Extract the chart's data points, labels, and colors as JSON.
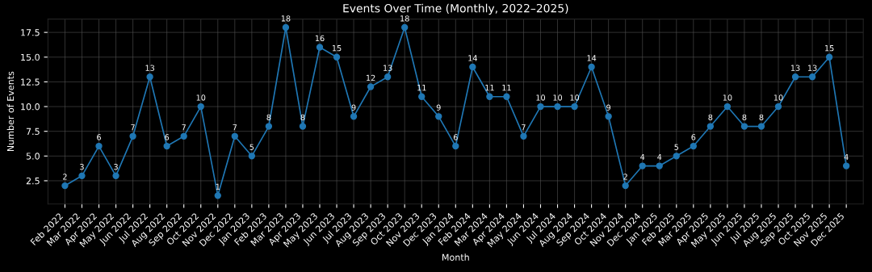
{
  "chart_data": {
    "type": "line",
    "title": "Events Over Time (Monthly, 2022–2025)",
    "xlabel": "Month",
    "ylabel": "Number of Events",
    "categories": [
      "Feb 2022",
      "Mar 2022",
      "Apr 2022",
      "May 2022",
      "Jun 2022",
      "Jul 2022",
      "Aug 2022",
      "Sep 2022",
      "Oct 2022",
      "Nov 2022",
      "Dec 2022",
      "Jan 2023",
      "Feb 2023",
      "Mar 2023",
      "Apr 2023",
      "May 2023",
      "Jun 2023",
      "Jul 2023",
      "Aug 2023",
      "Sep 2023",
      "Oct 2023",
      "Nov 2023",
      "Dec 2023",
      "Jan 2024",
      "Feb 2024",
      "Mar 2024",
      "Apr 2024",
      "May 2024",
      "Jun 2024",
      "Jul 2024",
      "Aug 2024",
      "Sep 2024",
      "Oct 2024",
      "Nov 2024",
      "Dec 2024",
      "Jan 2025",
      "Feb 2025",
      "Mar 2025",
      "Apr 2025",
      "May 2025",
      "Jun 2025",
      "Jul 2025",
      "Aug 2025",
      "Sep 2025",
      "Oct 2025",
      "Nov 2025",
      "Dec 2025"
    ],
    "series": [
      {
        "color": "#1f77b4",
        "values": [
          2,
          3,
          6,
          3,
          7,
          13,
          6,
          7,
          10,
          1,
          7,
          5,
          8,
          18,
          8,
          16,
          15,
          9,
          12,
          13,
          18,
          11,
          9,
          6,
          14,
          11,
          11,
          7,
          10,
          10,
          10,
          14,
          9,
          2,
          4,
          4,
          5,
          6,
          8,
          10,
          8,
          8,
          10,
          13,
          13,
          15,
          4
        ]
      }
    ],
    "ylim": [
      0.15,
      18.85
    ],
    "yticks": [
      {
        "value": 2.5,
        "label": "2.5"
      },
      {
        "value": 5,
        "label": "5.0"
      },
      {
        "value": 7.5,
        "label": "7.5"
      },
      {
        "value": 10,
        "label": "10.0"
      },
      {
        "value": 12.5,
        "label": "12.5"
      },
      {
        "value": 15,
        "label": "15.0"
      },
      {
        "value": 17.5,
        "label": "17.5"
      }
    ],
    "grid": true,
    "marker": "circle",
    "line_style": "solid",
    "data_labels": true
  }
}
